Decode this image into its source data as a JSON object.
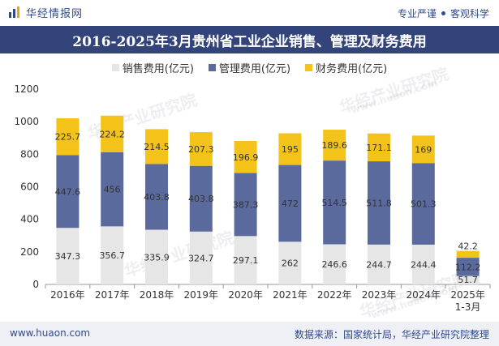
{
  "header": {
    "logo_text": "华经情报网",
    "tagline_left": "专业严谨",
    "tagline_right": "客观科学"
  },
  "watermarks": {
    "text": "华经产业研究院",
    "url": "www.huaon.com"
  },
  "footer": {
    "website": "www.huaon.com",
    "source": "数据来源：国家统计局，华经产业研究院整理"
  },
  "colors": {
    "sales": "#e6e6e6",
    "management": "#5b6a9d",
    "finance": "#f4c31a",
    "title_bg": "#33447a"
  },
  "chart_data": {
    "type": "bar",
    "stacked": true,
    "title": "2016-2025年3月贵州省工业企业销售、管理及财务费用",
    "categories": [
      "2016年",
      "2017年",
      "2018年",
      "2019年",
      "2020年",
      "2021年",
      "2022年",
      "2023年",
      "2024年",
      "2025年\n1-3月"
    ],
    "series": [
      {
        "name": "销售费用(亿元)",
        "values": [
          347.3,
          356.7,
          335.9,
          324.7,
          297.1,
          262,
          246.6,
          244.7,
          244.4,
          51.7
        ],
        "labels": [
          "347.3",
          "356.7",
          "335.9",
          "324.7",
          "297.1",
          "262",
          "246.6",
          "244.7",
          "244.4",
          "51.7"
        ]
      },
      {
        "name": "管理费用(亿元)",
        "values": [
          447.6,
          456,
          403.8,
          403.8,
          387.3,
          472,
          514.5,
          511.8,
          501.3,
          112.2
        ],
        "labels": [
          "447.6",
          "456",
          "403.8",
          "403.8",
          "387.3",
          "472",
          "514.5",
          "511.8",
          "501.3",
          "112.2"
        ]
      },
      {
        "name": "财务费用(亿元)",
        "values": [
          225.7,
          224.2,
          214.5,
          207.3,
          196.9,
          195,
          189.6,
          171.1,
          169,
          42.2
        ],
        "labels": [
          "225.7",
          "224.2",
          "214.5",
          "207.3",
          "196.9",
          "195",
          "189.6",
          "171.1",
          "169",
          "42.2"
        ]
      }
    ],
    "ylim": [
      0,
      1200
    ],
    "yticks": [
      0,
      200,
      400,
      600,
      800,
      1000,
      1200
    ],
    "xlabel": "",
    "ylabel": "",
    "legend_position": "top"
  }
}
